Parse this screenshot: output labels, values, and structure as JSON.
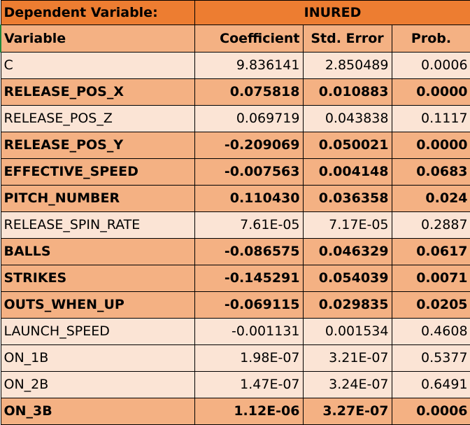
{
  "header": {
    "dependent_label": "Dependent Variable:",
    "dependent_value": "INURED",
    "col_variable": "Variable",
    "col_coefficient": "Coefficient",
    "col_std_error": "Std. Error",
    "col_prob": "Prob."
  },
  "colors": {
    "header_fill": "#ed7d31",
    "bold_row_fill": "#f4b183",
    "plain_row_fill": "#fbe4d5"
  },
  "rows": [
    {
      "variable": "C",
      "coefficient": "9.836141",
      "std_error": "2.850489",
      "prob": "0.0006",
      "bold": false
    },
    {
      "variable": "RELEASE_POS_X",
      "coefficient": "0.075818",
      "std_error": "0.010883",
      "prob": "0.0000",
      "bold": true
    },
    {
      "variable": "RELEASE_POS_Z",
      "coefficient": "0.069719",
      "std_error": "0.043838",
      "prob": "0.1117",
      "bold": false
    },
    {
      "variable": "RELEASE_POS_Y",
      "coefficient": "-0.209069",
      "std_error": "0.050021",
      "prob": "0.0000",
      "bold": true
    },
    {
      "variable": "EFFECTIVE_SPEED",
      "coefficient": "-0.007563",
      "std_error": "0.004148",
      "prob": "0.0683",
      "bold": true
    },
    {
      "variable": "PITCH_NUMBER",
      "coefficient": "0.110430",
      "std_error": "0.036358",
      "prob": "0.024",
      "bold": true
    },
    {
      "variable": "RELEASE_SPIN_RATE",
      "coefficient": "7.61E-05",
      "std_error": "7.17E-05",
      "prob": "0.2887",
      "bold": false
    },
    {
      "variable": "BALLS",
      "coefficient": "-0.086575",
      "std_error": "0.046329",
      "prob": "0.0617",
      "bold": true
    },
    {
      "variable": "STRIKES",
      "coefficient": "-0.145291",
      "std_error": "0.054039",
      "prob": "0.0071",
      "bold": true
    },
    {
      "variable": "OUTS_WHEN_UP",
      "coefficient": "-0.069115",
      "std_error": "0.029835",
      "prob": "0.0205",
      "bold": true
    },
    {
      "variable": "LAUNCH_SPEED",
      "coefficient": "-0.001131",
      "std_error": "0.001534",
      "prob": "0.4608",
      "bold": false
    },
    {
      "variable": "ON_1B",
      "coefficient": "1.98E-07",
      "std_error": "3.21E-07",
      "prob": "0.5377",
      "bold": false
    },
    {
      "variable": "ON_2B",
      "coefficient": "1.47E-07",
      "std_error": "3.24E-07",
      "prob": "0.6491",
      "bold": false
    },
    {
      "variable": "ON_3B",
      "coefficient": "1.12E-06",
      "std_error": "3.27E-07",
      "prob": "0.0006",
      "bold": true
    }
  ]
}
